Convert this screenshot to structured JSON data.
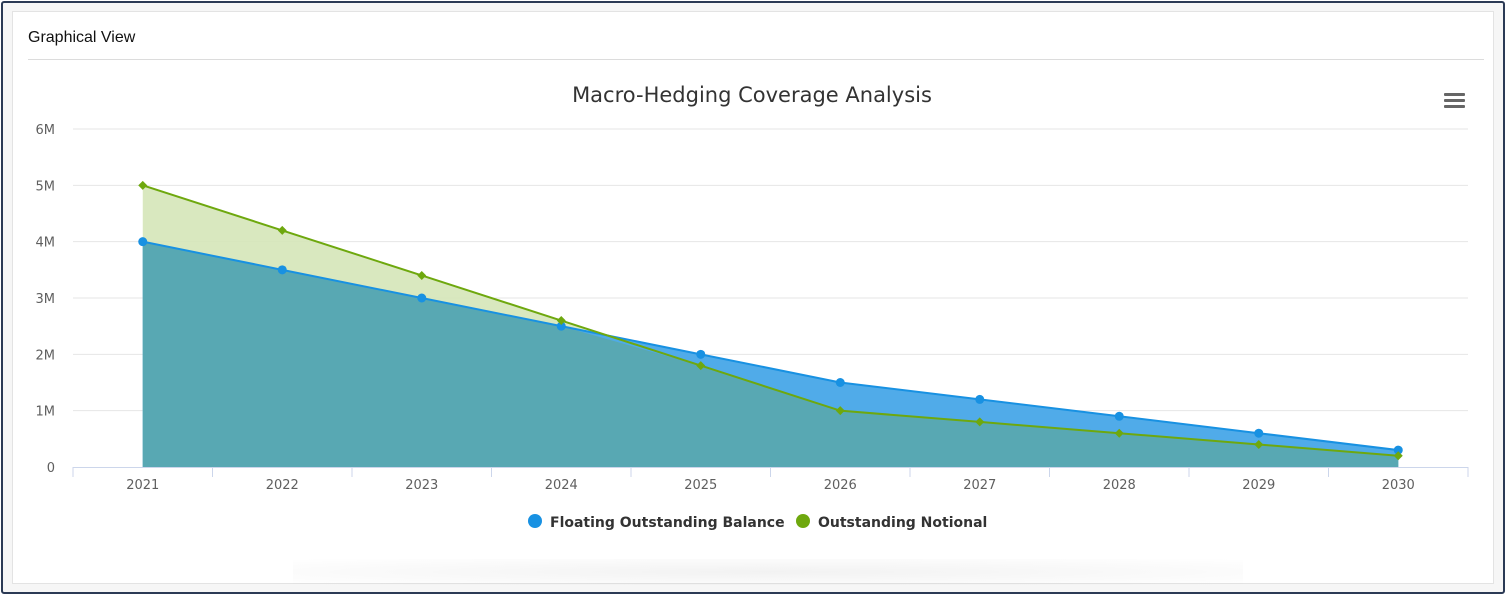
{
  "panel": {
    "title": "Graphical View"
  },
  "menu_icon": "hamburger-menu-icon",
  "colors": {
    "floating": "#1891e2",
    "floating_fill": "#4aa8e8",
    "notional": "#6ea80e",
    "notional_fill": "#d5e6b8",
    "overlap_fill": "#58a8b3",
    "grid": "#e6e6e6",
    "axis": "#ccd6eb"
  },
  "chart_data": {
    "type": "area",
    "title": "Macro-Hedging Coverage Analysis",
    "xlabel": "",
    "ylabel": "",
    "categories": [
      "2021",
      "2022",
      "2023",
      "2024",
      "2025",
      "2026",
      "2027",
      "2028",
      "2029",
      "2030"
    ],
    "ylim": [
      0,
      6000000
    ],
    "yticks": [
      0,
      1000000,
      2000000,
      3000000,
      4000000,
      5000000,
      6000000
    ],
    "ytick_labels": [
      "0",
      "1M",
      "2M",
      "3M",
      "4M",
      "5M",
      "6M"
    ],
    "grid": true,
    "legend": "bottom-center",
    "series": [
      {
        "name": "Floating Outstanding Balance",
        "marker": "circle",
        "values": [
          4000000,
          3500000,
          3000000,
          2500000,
          2000000,
          1500000,
          1200000,
          900000,
          600000,
          300000
        ]
      },
      {
        "name": "Outstanding Notional",
        "marker": "diamond",
        "values": [
          5000000,
          4200000,
          3400000,
          2600000,
          1800000,
          1000000,
          800000,
          600000,
          400000,
          200000
        ]
      }
    ]
  }
}
